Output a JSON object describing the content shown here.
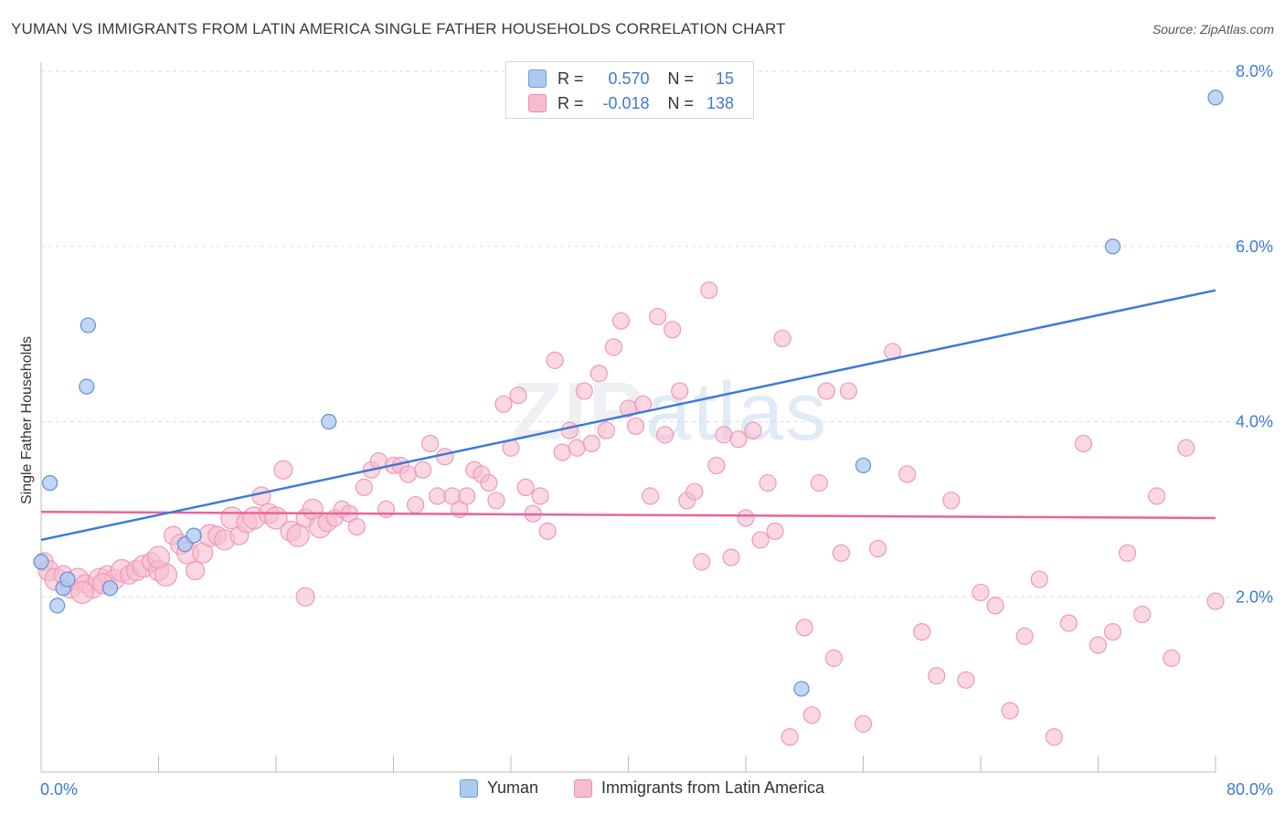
{
  "title": "YUMAN VS IMMIGRANTS FROM LATIN AMERICA SINGLE FATHER HOUSEHOLDS CORRELATION CHART",
  "source": "Source: ZipAtlas.com",
  "watermark": {
    "main": "ZIP",
    "sub": "atlas"
  },
  "stats": {
    "row1": {
      "r_label": "R =",
      "r": "0.570",
      "n_label": "N =",
      "n": "15"
    },
    "row2": {
      "r_label": "R =",
      "r": "-0.018",
      "n_label": "N =",
      "n": "138"
    }
  },
  "legend": {
    "yuman": "Yuman",
    "latin": "Immigrants from Latin America"
  },
  "colors": {
    "blue": "#3d7ad6",
    "blue_fill": "#adc9f0",
    "pink": "#e8659a",
    "pink_fill": "#f7bccf",
    "grid": "#dddddd"
  },
  "chart_data": {
    "type": "scatter",
    "xlabel": "",
    "ylabel": "Single Father Households",
    "xlim": [
      0,
      80
    ],
    "ylim": [
      0,
      8.0
    ],
    "x_tick_labels": [
      "0.0%",
      "80.0%"
    ],
    "y_tick_labels": [
      "2.0%",
      "4.0%",
      "6.0%",
      "8.0%"
    ],
    "y_ticks": [
      2,
      4,
      6,
      8
    ],
    "grid": true,
    "series": [
      {
        "name": "Yuman",
        "trend": [
          [
            0,
            2.65
          ],
          [
            80,
            5.5
          ]
        ],
        "points": [
          [
            0.0,
            2.4
          ],
          [
            0.6,
            3.3
          ],
          [
            1.1,
            1.9
          ],
          [
            1.5,
            2.1
          ],
          [
            1.8,
            2.2
          ],
          [
            3.2,
            5.1
          ],
          [
            3.1,
            4.4
          ],
          [
            4.7,
            2.1
          ],
          [
            9.8,
            2.6
          ],
          [
            10.4,
            2.7
          ],
          [
            19.6,
            4.0
          ],
          [
            56.0,
            3.5
          ],
          [
            51.8,
            0.95
          ],
          [
            73.0,
            6.0
          ],
          [
            80.0,
            7.7
          ]
        ]
      },
      {
        "name": "Immigrants from Latin America",
        "trend": [
          [
            0,
            2.97
          ],
          [
            80,
            2.9
          ]
        ],
        "points": [
          [
            0.2,
            2.4
          ],
          [
            0.5,
            2.3
          ],
          [
            1.0,
            2.2
          ],
          [
            1.5,
            2.25
          ],
          [
            2.0,
            2.1
          ],
          [
            2.5,
            2.2
          ],
          [
            3.0,
            2.15
          ],
          [
            3.5,
            2.1
          ],
          [
            4.0,
            2.2
          ],
          [
            4.5,
            2.25
          ],
          [
            5.0,
            2.2
          ],
          [
            5.5,
            2.3
          ],
          [
            6.0,
            2.25
          ],
          [
            6.5,
            2.3
          ],
          [
            7.0,
            2.35
          ],
          [
            7.5,
            2.4
          ],
          [
            8.0,
            2.3
          ],
          [
            8.5,
            2.25
          ],
          [
            9.0,
            2.7
          ],
          [
            9.5,
            2.6
          ],
          [
            10.0,
            2.5
          ],
          [
            10.5,
            2.3
          ],
          [
            11.0,
            2.5
          ],
          [
            11.5,
            2.7
          ],
          [
            12.0,
            2.7
          ],
          [
            12.5,
            2.65
          ],
          [
            13.0,
            2.9
          ],
          [
            13.5,
            2.7
          ],
          [
            14.0,
            2.85
          ],
          [
            14.5,
            2.9
          ],
          [
            15.0,
            3.15
          ],
          [
            15.5,
            2.95
          ],
          [
            16.0,
            2.9
          ],
          [
            16.5,
            3.45
          ],
          [
            17.0,
            2.75
          ],
          [
            17.5,
            2.7
          ],
          [
            18.0,
            2.9
          ],
          [
            18.5,
            3.0
          ],
          [
            19.0,
            2.8
          ],
          [
            19.5,
            2.85
          ],
          [
            20.0,
            2.9
          ],
          [
            20.5,
            3.0
          ],
          [
            21.0,
            2.95
          ],
          [
            21.5,
            2.8
          ],
          [
            22.0,
            3.25
          ],
          [
            22.5,
            3.45
          ],
          [
            23.0,
            3.55
          ],
          [
            23.5,
            3.0
          ],
          [
            24.0,
            3.5
          ],
          [
            24.5,
            3.5
          ],
          [
            25.0,
            3.4
          ],
          [
            25.5,
            3.05
          ],
          [
            26.0,
            3.45
          ],
          [
            26.5,
            3.75
          ],
          [
            27.0,
            3.15
          ],
          [
            27.5,
            3.6
          ],
          [
            28.0,
            3.15
          ],
          [
            28.5,
            3.0
          ],
          [
            29.0,
            3.15
          ],
          [
            29.5,
            3.45
          ],
          [
            30.0,
            3.4
          ],
          [
            30.5,
            3.3
          ],
          [
            31.0,
            3.1
          ],
          [
            31.5,
            4.2
          ],
          [
            32.0,
            3.7
          ],
          [
            32.5,
            4.3
          ],
          [
            33.0,
            3.25
          ],
          [
            33.5,
            2.95
          ],
          [
            34.0,
            3.15
          ],
          [
            34.5,
            2.75
          ],
          [
            35.0,
            4.7
          ],
          [
            35.5,
            3.65
          ],
          [
            36.0,
            3.9
          ],
          [
            36.5,
            3.7
          ],
          [
            37.0,
            4.35
          ],
          [
            37.5,
            3.75
          ],
          [
            38.0,
            4.55
          ],
          [
            38.5,
            3.9
          ],
          [
            39.0,
            4.85
          ],
          [
            39.5,
            5.15
          ],
          [
            40.0,
            4.15
          ],
          [
            40.5,
            3.95
          ],
          [
            41.0,
            4.2
          ],
          [
            41.5,
            3.15
          ],
          [
            42.0,
            5.2
          ],
          [
            42.5,
            3.85
          ],
          [
            43.0,
            5.05
          ],
          [
            43.5,
            4.35
          ],
          [
            44.0,
            3.1
          ],
          [
            44.5,
            3.2
          ],
          [
            45.0,
            2.4
          ],
          [
            45.5,
            5.5
          ],
          [
            46.0,
            3.5
          ],
          [
            46.5,
            3.85
          ],
          [
            47.0,
            2.45
          ],
          [
            47.5,
            3.8
          ],
          [
            48.0,
            2.9
          ],
          [
            48.5,
            3.9
          ],
          [
            49.0,
            2.65
          ],
          [
            49.5,
            3.3
          ],
          [
            50.0,
            2.75
          ],
          [
            50.5,
            4.95
          ],
          [
            51.0,
            0.4
          ],
          [
            52.0,
            1.65
          ],
          [
            52.5,
            0.65
          ],
          [
            53.0,
            3.3
          ],
          [
            53.5,
            4.35
          ],
          [
            54.0,
            1.3
          ],
          [
            54.5,
            2.5
          ],
          [
            55.0,
            4.35
          ],
          [
            56.0,
            0.55
          ],
          [
            57.0,
            2.55
          ],
          [
            58.0,
            4.8
          ],
          [
            59.0,
            3.4
          ],
          [
            60.0,
            1.6
          ],
          [
            61.0,
            1.1
          ],
          [
            62.0,
            3.1
          ],
          [
            63.0,
            1.05
          ],
          [
            64.0,
            2.05
          ],
          [
            65.0,
            1.9
          ],
          [
            66.0,
            0.7
          ],
          [
            67.0,
            1.55
          ],
          [
            68.0,
            2.2
          ],
          [
            69.0,
            0.4
          ],
          [
            70.0,
            1.7
          ],
          [
            71.0,
            3.75
          ],
          [
            72.0,
            1.45
          ],
          [
            73.0,
            1.6
          ],
          [
            74.0,
            2.5
          ],
          [
            75.0,
            1.8
          ],
          [
            76.0,
            3.15
          ],
          [
            77.0,
            1.3
          ],
          [
            78.0,
            3.7
          ],
          [
            80.0,
            1.95
          ],
          [
            8.0,
            2.45
          ],
          [
            18.0,
            2.0
          ],
          [
            4.2,
            2.15
          ],
          [
            2.8,
            2.05
          ]
        ]
      }
    ]
  }
}
